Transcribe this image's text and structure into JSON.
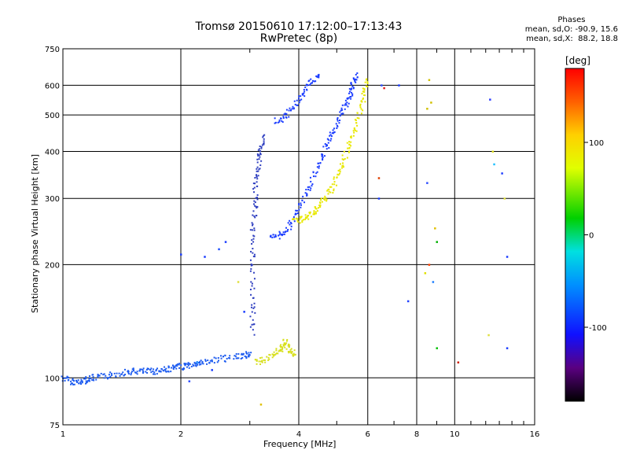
{
  "header": {
    "title": "Tromsø 20150610 17:12:00–17:13:43",
    "subtitle": "RwPretec (8p)"
  },
  "phase_stats": {
    "title": "Phases",
    "line1": "mean, sd,O: -90.9, 15.6",
    "line2": "mean, sd,X:  88.2, 18.8"
  },
  "colorbar": {
    "label": "[deg]",
    "ticks": [
      100,
      0,
      -100
    ],
    "range": [
      -180,
      180
    ]
  },
  "chart_data": {
    "type": "scatter",
    "title": "Tromsø 20150610 17:12:00–17:13:43",
    "subtitle": "RwPretec (8p)",
    "xlabel": "Frequency [MHz]",
    "ylabel": "Stationary phase Virtual Height [km]",
    "xscale": "log",
    "yscale": "log",
    "xlim": [
      1,
      16
    ],
    "ylim": [
      75,
      750
    ],
    "xticks": [
      1,
      2,
      4,
      6,
      8,
      10,
      16
    ],
    "yticks": [
      75,
      100,
      200,
      300,
      400,
      500,
      600,
      750
    ],
    "grid": true,
    "color_variable": "phase [deg]",
    "series": [
      {
        "description": "E-region / low-height trace",
        "color": "#1e5cf0",
        "points": [
          [
            1.0,
            100
          ],
          [
            1.05,
            98
          ],
          [
            1.1,
            97
          ],
          [
            1.15,
            99
          ],
          [
            1.2,
            100
          ],
          [
            1.3,
            101
          ],
          [
            1.4,
            103
          ],
          [
            1.5,
            104
          ],
          [
            1.6,
            104
          ],
          [
            1.7,
            104
          ],
          [
            1.8,
            105
          ],
          [
            1.9,
            106
          ],
          [
            2.0,
            107
          ],
          [
            2.1,
            108
          ],
          [
            2.2,
            109
          ],
          [
            2.3,
            110
          ],
          [
            2.5,
            112
          ],
          [
            2.7,
            113
          ],
          [
            2.9,
            115
          ],
          [
            3.0,
            115
          ]
        ]
      },
      {
        "description": "Spread-F blue trace lower branch",
        "color": "#1a3cff",
        "points": [
          [
            3.4,
            235
          ],
          [
            3.6,
            240
          ],
          [
            3.8,
            255
          ],
          [
            4.0,
            280
          ],
          [
            4.2,
            310
          ],
          [
            4.4,
            350
          ],
          [
            4.6,
            390
          ],
          [
            4.8,
            430
          ],
          [
            5.0,
            470
          ],
          [
            5.2,
            520
          ],
          [
            5.4,
            560
          ],
          [
            5.5,
            600
          ],
          [
            5.6,
            640
          ]
        ]
      },
      {
        "description": "Spread-F blue trace upper branch",
        "color": "#1a3cff",
        "points": [
          [
            3.5,
            480
          ],
          [
            3.7,
            495
          ],
          [
            3.9,
            530
          ],
          [
            4.1,
            570
          ],
          [
            4.3,
            610
          ],
          [
            4.5,
            640
          ]
        ]
      },
      {
        "description": "X-mode yellow trace",
        "color": "#e8e800",
        "points": [
          [
            3.9,
            260
          ],
          [
            4.1,
            265
          ],
          [
            4.3,
            272
          ],
          [
            4.5,
            285
          ],
          [
            4.7,
            300
          ],
          [
            4.9,
            325
          ],
          [
            5.1,
            355
          ],
          [
            5.3,
            395
          ],
          [
            5.5,
            440
          ],
          [
            5.7,
            500
          ],
          [
            5.85,
            560
          ],
          [
            5.95,
            620
          ]
        ]
      },
      {
        "description": "Yellow low cluster",
        "color": "#d8e020",
        "points": [
          [
            3.1,
            110
          ],
          [
            3.3,
            112
          ],
          [
            3.5,
            115
          ],
          [
            3.6,
            120
          ],
          [
            3.7,
            125
          ],
          [
            3.8,
            118
          ],
          [
            3.9,
            115
          ]
        ]
      },
      {
        "description": "Vertical spread column near 3.1 MHz",
        "color": "#3040c0",
        "points": [
          [
            3.05,
            130
          ],
          [
            3.05,
            160
          ],
          [
            3.05,
            200
          ],
          [
            3.05,
            240
          ],
          [
            3.1,
            280
          ],
          [
            3.1,
            320
          ],
          [
            3.15,
            360
          ],
          [
            3.2,
            400
          ],
          [
            3.25,
            440
          ]
        ]
      }
    ]
  }
}
